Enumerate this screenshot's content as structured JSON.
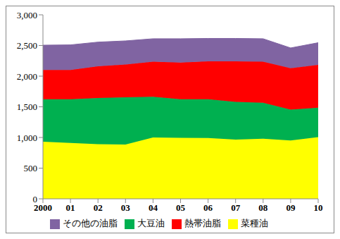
{
  "chart_data": {
    "type": "area",
    "stacked": true,
    "grid": false,
    "legend": "bottom",
    "categories": [
      "2000",
      "01",
      "02",
      "03",
      "04",
      "05",
      "06",
      "07",
      "08",
      "09",
      "10"
    ],
    "series": [
      {
        "name": "菜種油",
        "color": "#ffff00",
        "values": [
          930,
          910,
          890,
          885,
          1000,
          995,
          990,
          965,
          980,
          950,
          1005
        ]
      },
      {
        "name": "大豆油",
        "color": "#00b050",
        "values": [
          695,
          715,
          755,
          770,
          665,
          630,
          635,
          615,
          585,
          505,
          480
        ]
      },
      {
        "name": "熱帯油脂",
        "color": "#ff0000",
        "values": [
          475,
          475,
          515,
          535,
          570,
          595,
          615,
          660,
          670,
          675,
          700
        ]
      },
      {
        "name": "その他の油脂",
        "color": "#8064a2",
        "values": [
          405,
          410,
          395,
          385,
          375,
          390,
          375,
          375,
          375,
          330,
          360
        ]
      }
    ],
    "ylim": [
      0,
      3000
    ],
    "yticks": [
      0,
      500,
      {
        "value": 1000,
        "label": "1,000"
      },
      {
        "value": 1500,
        "label": "1,500"
      },
      {
        "value": 2000,
        "label": "2,000"
      },
      {
        "value": 2500,
        "label": "2,500"
      },
      {
        "value": 3000,
        "label": "3,000"
      }
    ]
  }
}
